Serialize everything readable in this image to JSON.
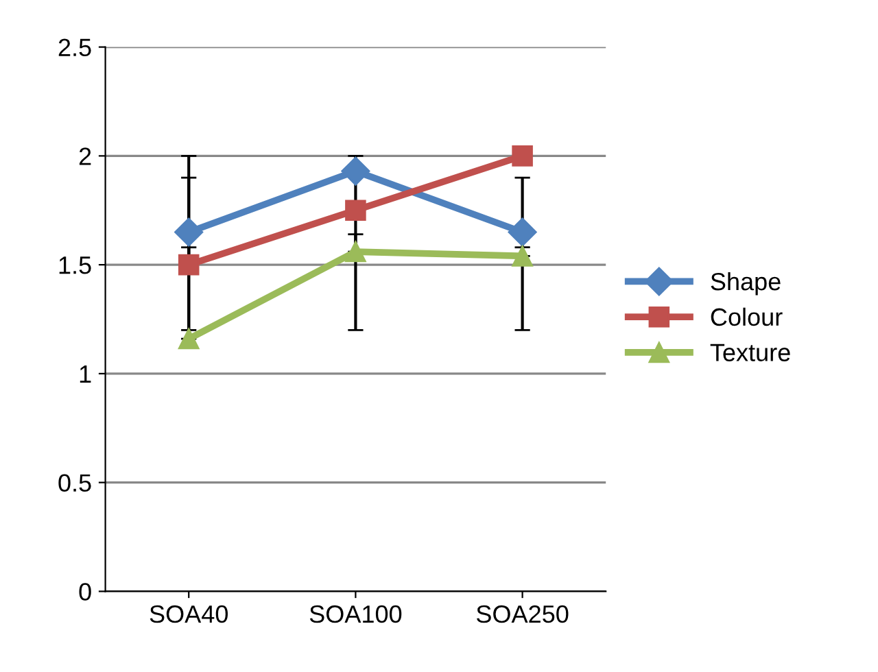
{
  "chart_data": {
    "type": "line",
    "categories": [
      "SOA40",
      "SOA100",
      "SOA250"
    ],
    "series": [
      {
        "name": "Shape",
        "color": "#4f81bd",
        "marker": "diamond",
        "values": [
          1.65,
          1.93,
          1.65
        ],
        "errors": [
          [
            1.2,
            2.0
          ],
          [
            1.2,
            2.0
          ],
          [
            1.2,
            1.9
          ]
        ]
      },
      {
        "name": "Colour",
        "color": "#c0504d",
        "marker": "square",
        "values": [
          1.5,
          1.75,
          2.0
        ],
        "errors": [
          [
            1.5,
            1.9
          ],
          null,
          null
        ]
      },
      {
        "name": "Texture",
        "color": "#9bbb59",
        "marker": "triangle",
        "values": [
          1.16,
          1.56,
          1.54
        ],
        "errors": [
          [
            1.16,
            1.58
          ],
          [
            1.56,
            1.64
          ],
          [
            1.54,
            1.58
          ]
        ]
      }
    ],
    "ylim": [
      0,
      2.5
    ],
    "yticks": [
      0,
      0.5,
      1,
      1.5,
      2,
      2.5
    ],
    "grid": "y",
    "legend": "right"
  }
}
